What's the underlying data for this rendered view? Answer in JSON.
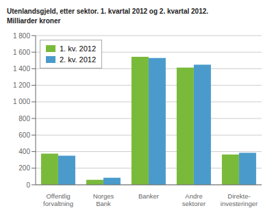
{
  "chart_data": {
    "type": "bar",
    "title": "Utenlandsgjeld, etter sektor. 1. kvartal 2012 og 2. kvartal 2012.",
    "subtitle": "Milliarder kroner",
    "categories": [
      "Offentlig\nforvaltning",
      "Norges\nBank",
      "Banker",
      "Andre\nsektorer",
      "Direkte-\ninvesteringer"
    ],
    "series": [
      {
        "name": "1. kv. 2012",
        "color": "#7aba3a",
        "values": [
          375,
          60,
          1545,
          1415,
          365
        ]
      },
      {
        "name": "2. kv. 2012",
        "color": "#4a9bcc",
        "values": [
          350,
          85,
          1530,
          1450,
          385
        ]
      }
    ],
    "ylim": [
      0,
      1800
    ],
    "yticks": [
      0,
      200,
      400,
      600,
      800,
      {
        "value": 1000,
        "label": "1 000"
      },
      {
        "value": 1200,
        "label": "1 200"
      },
      {
        "value": 1400,
        "label": "1 400"
      },
      {
        "value": 1600,
        "label": "1 600"
      },
      {
        "value": 1800,
        "label": "1 800"
      }
    ],
    "grid": true,
    "legend": "upper left"
  }
}
